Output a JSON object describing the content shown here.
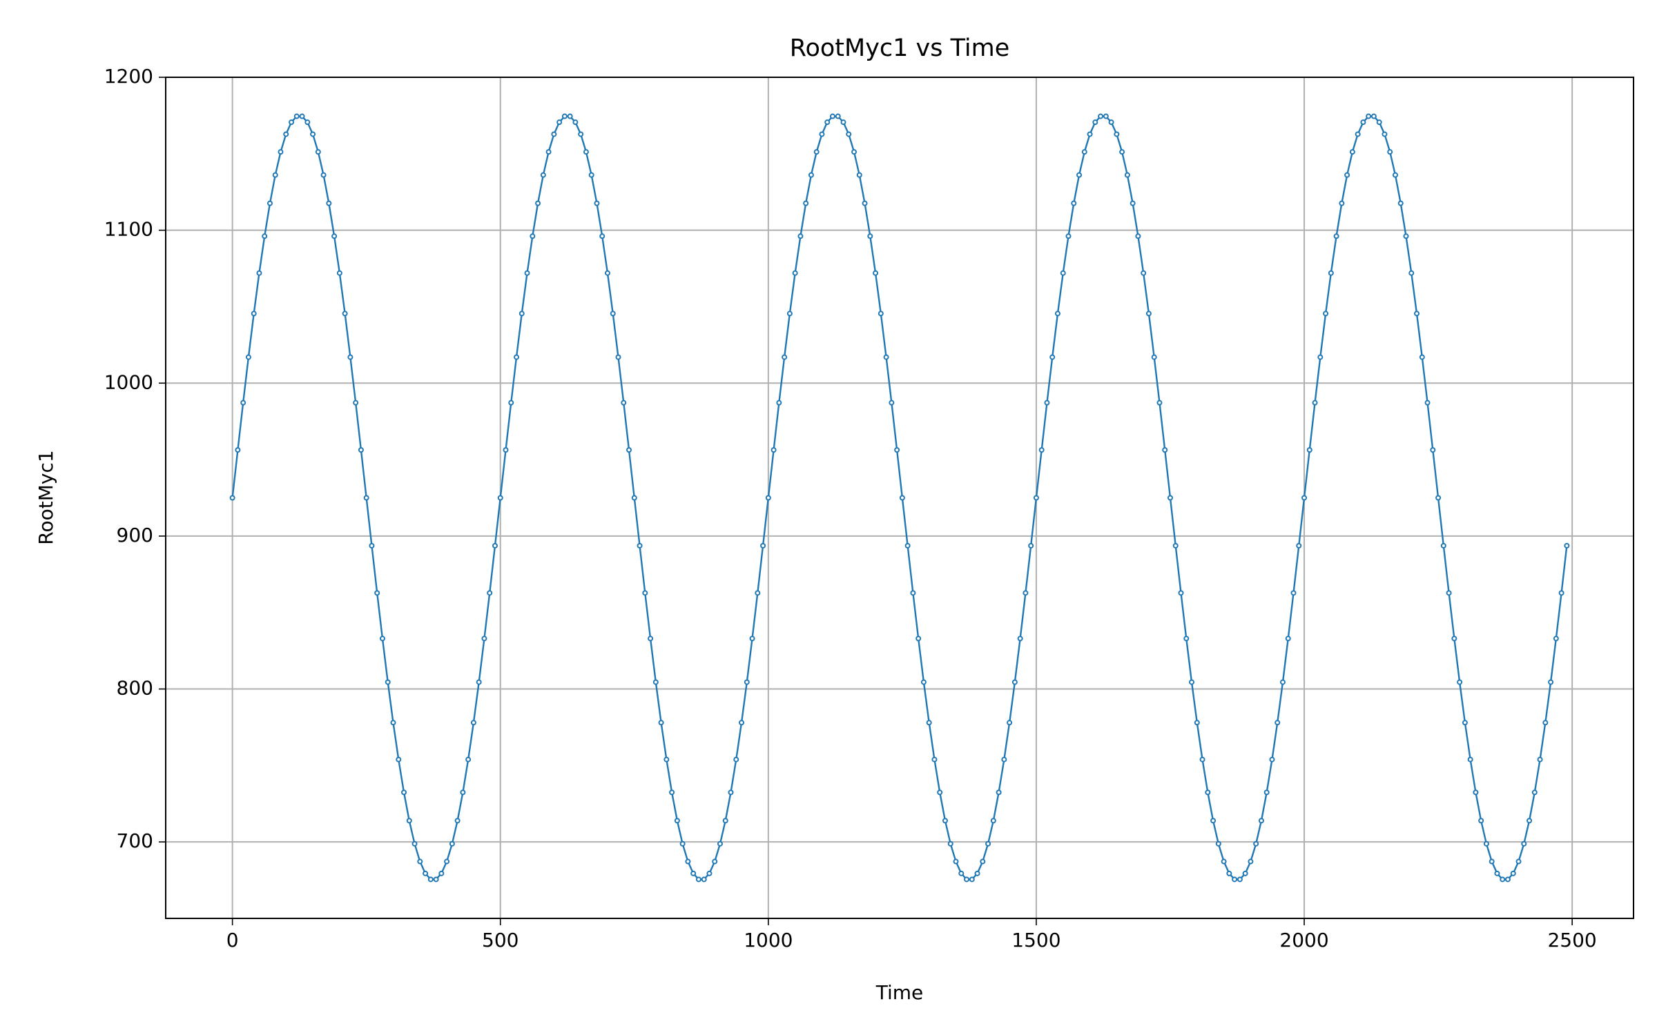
{
  "chart_data": {
    "type": "line",
    "title": "RootMyc1 vs Time",
    "xlabel": "Time",
    "ylabel": "RootMyc1",
    "x": [
      0,
      10,
      20,
      30,
      40,
      50,
      60,
      70,
      80,
      90,
      100,
      110,
      120,
      130,
      140,
      150,
      160,
      170,
      180,
      190,
      200,
      210,
      220,
      230,
      240,
      250,
      260,
      270,
      280,
      290,
      300,
      310,
      320,
      330,
      340,
      350,
      360,
      370,
      380,
      390,
      400,
      410,
      420,
      430,
      440,
      450,
      460,
      470,
      480,
      490,
      500,
      510,
      520,
      530,
      540,
      550,
      560,
      570,
      580,
      590,
      600,
      610,
      620,
      630,
      640,
      650,
      660,
      670,
      680,
      690,
      700,
      710,
      720,
      730,
      740,
      750,
      760,
      770,
      780,
      790,
      800,
      810,
      820,
      830,
      840,
      850,
      860,
      870,
      880,
      890,
      900,
      910,
      920,
      930,
      940,
      950,
      960,
      970,
      980,
      990,
      1000,
      1010,
      1020,
      1030,
      1040,
      1050,
      1060,
      1070,
      1080,
      1090,
      1100,
      1110,
      1120,
      1130,
      1140,
      1150,
      1160,
      1170,
      1180,
      1190,
      1200,
      1210,
      1220,
      1230,
      1240,
      1250,
      1260,
      1270,
      1280,
      1290,
      1300,
      1310,
      1320,
      1330,
      1340,
      1350,
      1360,
      1370,
      1380,
      1390,
      1400,
      1410,
      1420,
      1430,
      1440,
      1450,
      1460,
      1470,
      1480,
      1490,
      1500,
      1510,
      1520,
      1530,
      1540,
      1550,
      1560,
      1570,
      1580,
      1590,
      1600,
      1610,
      1620,
      1630,
      1640,
      1650,
      1660,
      1670,
      1680,
      1690,
      1700,
      1710,
      1720,
      1730,
      1740,
      1750,
      1760,
      1770,
      1780,
      1790,
      1800,
      1810,
      1820,
      1830,
      1840,
      1850,
      1860,
      1870,
      1880,
      1890,
      1900,
      1910,
      1920,
      1930,
      1940,
      1950,
      1960,
      1970,
      1980,
      1990,
      2000,
      2010,
      2020,
      2030,
      2040,
      2050,
      2060,
      2070,
      2080,
      2090,
      2100,
      2110,
      2120,
      2130,
      2140,
      2150,
      2160,
      2170,
      2180,
      2190,
      2200,
      2210,
      2220,
      2230,
      2240,
      2250,
      2260,
      2270,
      2280,
      2290,
      2300,
      2310,
      2320,
      2330,
      2340,
      2350,
      2360,
      2370,
      2380,
      2390,
      2400,
      2410,
      2420,
      2430,
      2440,
      2450,
      2460,
      2470,
      2480,
      2490
    ],
    "values": [
      925,
      956.3,
      987.2,
      1017.0,
      1045.5,
      1072.0,
      1096.1,
      1117.6,
      1136.1,
      1151.2,
      1162.8,
      1170.6,
      1174.5,
      1174.5,
      1170.6,
      1162.8,
      1151.2,
      1136.1,
      1117.6,
      1096.1,
      1072.0,
      1045.5,
      1017.0,
      987.2,
      956.3,
      925,
      893.7,
      862.8,
      833.0,
      804.5,
      778.0,
      753.9,
      732.4,
      713.9,
      698.8,
      687.2,
      679.4,
      675.5,
      675.5,
      679.4,
      687.2,
      698.8,
      713.9,
      732.4,
      753.9,
      778.0,
      804.5,
      833.0,
      862.8,
      893.7,
      925,
      956.3,
      987.2,
      1017.0,
      1045.5,
      1072.0,
      1096.1,
      1117.6,
      1136.1,
      1151.2,
      1162.8,
      1170.6,
      1174.5,
      1174.5,
      1170.6,
      1162.8,
      1151.2,
      1136.1,
      1117.6,
      1096.1,
      1072.0,
      1045.5,
      1017.0,
      987.2,
      956.3,
      925,
      893.7,
      862.8,
      833.0,
      804.5,
      778.0,
      753.9,
      732.4,
      713.9,
      698.8,
      687.2,
      679.4,
      675.5,
      675.5,
      679.4,
      687.2,
      698.8,
      713.9,
      732.4,
      753.9,
      778.0,
      804.5,
      833.0,
      862.8,
      893.7,
      925,
      956.3,
      987.2,
      1017.0,
      1045.5,
      1072.0,
      1096.1,
      1117.6,
      1136.1,
      1151.2,
      1162.8,
      1170.6,
      1174.5,
      1174.5,
      1170.6,
      1162.8,
      1151.2,
      1136.1,
      1117.6,
      1096.1,
      1072.0,
      1045.5,
      1017.0,
      987.2,
      956.3,
      925,
      893.7,
      862.8,
      833.0,
      804.5,
      778.0,
      753.9,
      732.4,
      713.9,
      698.8,
      687.2,
      679.4,
      675.5,
      675.5,
      679.4,
      687.2,
      698.8,
      713.9,
      732.4,
      753.9,
      778.0,
      804.5,
      833.0,
      862.8,
      893.7,
      925,
      956.3,
      987.2,
      1017.0,
      1045.5,
      1072.0,
      1096.1,
      1117.6,
      1136.1,
      1151.2,
      1162.8,
      1170.6,
      1174.5,
      1174.5,
      1170.6,
      1162.8,
      1151.2,
      1136.1,
      1117.6,
      1096.1,
      1072.0,
      1045.5,
      1017.0,
      987.2,
      956.3,
      925,
      893.7,
      862.8,
      833.0,
      804.5,
      778.0,
      753.9,
      732.4,
      713.9,
      698.8,
      687.2,
      679.4,
      675.5,
      675.5,
      679.4,
      687.2,
      698.8,
      713.9,
      732.4,
      753.9,
      778.0,
      804.5,
      833.0,
      862.8,
      893.7,
      925,
      956.3,
      987.2,
      1017.0,
      1045.5,
      1072.0,
      1096.1,
      1117.6,
      1136.1,
      1151.2,
      1162.8,
      1170.6,
      1174.5,
      1174.5,
      1170.6,
      1162.8,
      1151.2,
      1136.1,
      1117.6,
      1096.1,
      1072.0,
      1045.5,
      1017.0,
      987.2,
      956.3,
      925,
      893.7,
      862.8,
      833.0,
      804.5,
      778.0,
      753.9,
      732.4,
      713.9,
      698.8,
      687.2,
      679.4,
      675.5,
      675.5,
      679.4,
      687.2,
      698.8,
      713.9,
      732.4,
      753.9,
      778.0,
      804.5,
      833.0,
      862.8,
      893.7
    ],
    "color": "#1f77b4",
    "marker": "o",
    "xlim": [
      -124.5,
      2614.5
    ],
    "xticks": [
      0,
      500,
      1000,
      1500,
      2000,
      2500
    ],
    "ylim": [
      650,
      1200
    ],
    "yticks": [
      700,
      800,
      900,
      1000,
      1100,
      1200
    ],
    "grid": true
  }
}
